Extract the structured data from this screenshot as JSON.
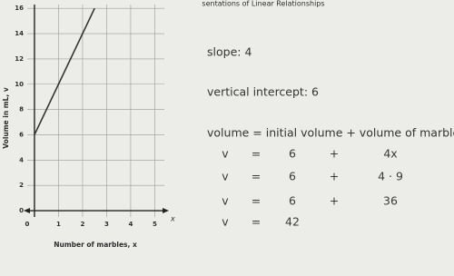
{
  "header": {
    "title": "sentations of Linear Relationships"
  },
  "chart_data": {
    "type": "line",
    "x_label": "Number of marbles, x",
    "y_label": "Volume in mL, v",
    "x_arrow_label": "x",
    "x": [
      0,
      2.5
    ],
    "series": [
      {
        "name": "volume",
        "color": "#333333",
        "values": [
          6,
          16
        ]
      }
    ],
    "xlim": [
      -0.3,
      5.4
    ],
    "ylim": [
      -0.5,
      16.3
    ],
    "xticks": [
      0,
      1,
      2,
      3,
      4,
      5
    ],
    "yticks": [
      0,
      2,
      4,
      6,
      8,
      10,
      12,
      14,
      16
    ],
    "grid": true
  },
  "notes": {
    "slope": "slope: 4",
    "intercept": "vertical intercept: 6",
    "formula": "volume = initial volume + volume of marbles"
  },
  "equations": [
    [
      "v",
      "=",
      "6",
      "+",
      "4x"
    ],
    [
      "v",
      "=",
      "6",
      "+",
      "4 · 9"
    ],
    [
      "v",
      "=",
      "6",
      "+",
      "36"
    ],
    [
      "v",
      "=",
      "42"
    ]
  ]
}
